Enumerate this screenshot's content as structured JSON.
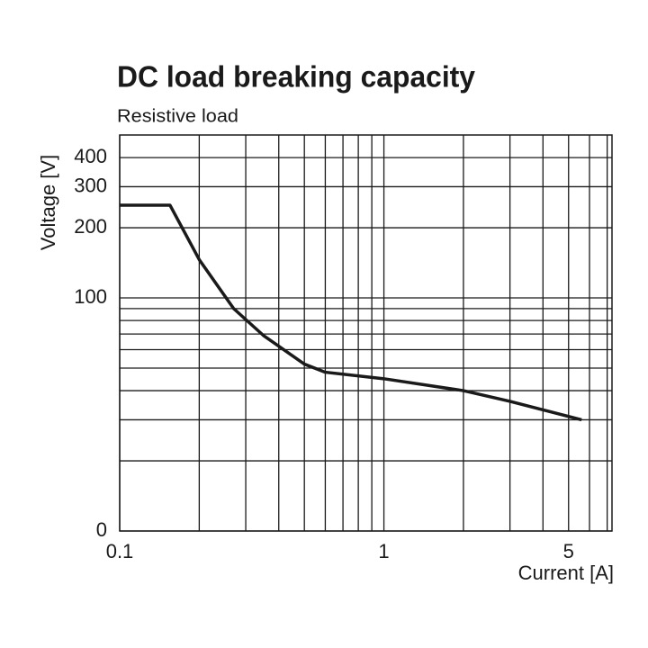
{
  "chart_data": {
    "type": "line",
    "title": "DC load breaking capacity",
    "subtitle": "Resistive load",
    "y_label": "Voltage [V]",
    "x_label": "Current [A]",
    "x": [
      0.1,
      0.155,
      0.2,
      0.27,
      0.35,
      0.5,
      0.6,
      1,
      2,
      3,
      5.6
    ],
    "series": [
      {
        "name": "DC load breaking capacity",
        "color": "#1a1a1a",
        "values": [
          250,
          250,
          146,
          90,
          69,
          52,
          48,
          45,
          40,
          36,
          30
        ]
      }
    ],
    "xlim": [
      0.1,
      7.3
    ],
    "ylim": [
      10,
      500
    ],
    "x_log": true,
    "y_log": true,
    "grid": true,
    "xticks": [
      0.1,
      1,
      5
    ],
    "yticks": [
      {
        "value": 10,
        "label": "0"
      },
      100,
      200,
      300,
      400
    ],
    "xgrid": [
      0.2,
      0.3,
      0.4,
      0.5,
      0.6,
      0.7,
      0.8,
      0.9,
      2,
      3,
      4,
      6,
      7
    ],
    "ygrid": [
      20,
      30,
      40,
      50,
      60,
      70,
      80,
      90
    ]
  }
}
